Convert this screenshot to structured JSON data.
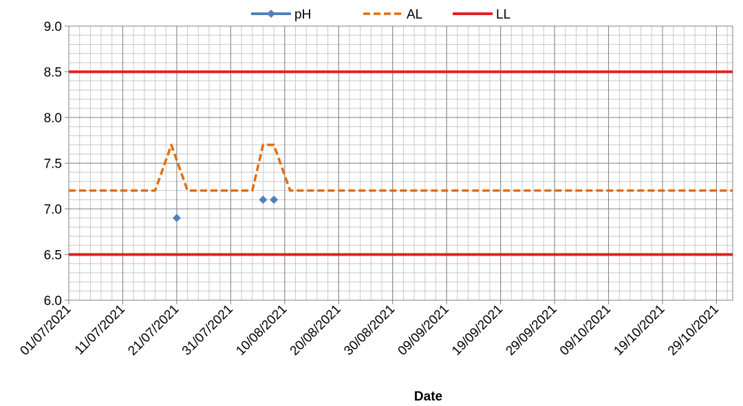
{
  "chart_data": {
    "type": "line",
    "title": "",
    "xlabel": "Date",
    "ylabel": "",
    "ylim": [
      6.0,
      9.0
    ],
    "y_major_step": 0.5,
    "y_minor_step": 0.1,
    "yticks": [
      "6.0",
      "6.5",
      "7.0",
      "7.5",
      "8.0",
      "8.5",
      "9.0"
    ],
    "xlim": [
      "2021-07-01",
      "2021-11-01"
    ],
    "x_minor_step_days": 2,
    "xticks": [
      {
        "date": "2021-07-01",
        "label": "01/07/2021"
      },
      {
        "date": "2021-07-11",
        "label": "11/07/2021"
      },
      {
        "date": "2021-07-21",
        "label": "21/07/2021"
      },
      {
        "date": "2021-07-31",
        "label": "31/07/2021"
      },
      {
        "date": "2021-08-10",
        "label": "10/08/2021"
      },
      {
        "date": "2021-08-20",
        "label": "20/08/2021"
      },
      {
        "date": "2021-08-30",
        "label": "30/08/2021"
      },
      {
        "date": "2021-09-09",
        "label": "09/09/2021"
      },
      {
        "date": "2021-09-19",
        "label": "19/09/2021"
      },
      {
        "date": "2021-09-29",
        "label": "29/09/2021"
      },
      {
        "date": "2021-10-09",
        "label": "09/10/2021"
      },
      {
        "date": "2021-10-19",
        "label": "19/10/2021"
      },
      {
        "date": "2021-10-29",
        "label": "29/10/2021"
      }
    ],
    "grid": true,
    "legend_position": "top",
    "series": [
      {
        "name": "pH",
        "style": "markers",
        "color": "#4F81BD",
        "x": [
          "2021-07-21",
          "2021-08-06",
          "2021-08-08"
        ],
        "y": [
          6.9,
          7.1,
          7.1
        ]
      },
      {
        "name": "AL",
        "style": "dashed",
        "color": "#E36C09",
        "x": [
          "2021-07-01",
          "2021-07-17",
          "2021-07-20",
          "2021-07-23",
          "2021-08-04",
          "2021-08-06",
          "2021-08-08",
          "2021-08-11",
          "2021-11-01"
        ],
        "y": [
          7.2,
          7.2,
          7.7,
          7.2,
          7.2,
          7.7,
          7.7,
          7.2,
          7.2
        ]
      },
      {
        "name": "LL",
        "style": "solid",
        "color": "#E0201E",
        "segments": [
          {
            "x": [
              "2021-07-01",
              "2021-11-01"
            ],
            "y": [
              8.5,
              8.5
            ]
          },
          {
            "x": [
              "2021-07-01",
              "2021-11-01"
            ],
            "y": [
              6.5,
              6.5
            ]
          }
        ]
      }
    ]
  }
}
